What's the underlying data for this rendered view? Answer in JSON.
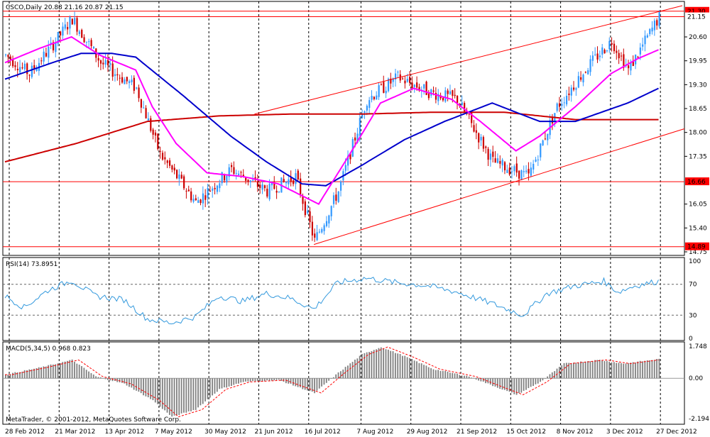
{
  "header": {
    "symbol_label": "CSCO,Daily",
    "ohlc": "20.88 21.16 20.87 21.15"
  },
  "rsi": {
    "label": "RSI(14) 73.8951",
    "levels": [
      30,
      70
    ],
    "ticks": [
      "100",
      "70",
      "30",
      "0"
    ]
  },
  "macd": {
    "label": "MACD(5,34,5) 0.968 0.823",
    "ticks": [
      "1.748",
      "0.00",
      "-2.194"
    ]
  },
  "footer": {
    "copyright": "MetaTrader, © 2001-2012, MetaQuotes Software Corp."
  },
  "colors": {
    "ema_fast": "#ff00ff",
    "sma_mid": "#0000cc",
    "sma_slow": "#cc0000",
    "bull": "#3399ff",
    "bear": "#cc0000",
    "rsi_line": "#3399dd",
    "macd_hist": "#808080",
    "macd_signal": "#ff0000",
    "channel": "#ff0000"
  },
  "chart_data": {
    "type": "line",
    "price_axis_ticks": [
      "20.60",
      "19.95",
      "19.30",
      "18.65",
      "18.00",
      "17.35",
      "16.05",
      "15.40",
      "14.75"
    ],
    "price_labels": [
      {
        "value": 21.3,
        "text": "21.30"
      },
      {
        "value": 21.15,
        "text": "21.15"
      },
      {
        "value": 16.66,
        "text": "16.66"
      },
      {
        "value": 14.89,
        "text": "14.89"
      }
    ],
    "ylim": [
      14.75,
      21.45
    ],
    "date_labels": [
      "28 Feb 2012",
      "21 Mar 2012",
      "13 Apr 2012",
      "7 May 2012",
      "30 May 2012",
      "21 Jun 2012",
      "16 Jul 2012",
      "7 Aug 2012",
      "29 Aug 2012",
      "21 Sep 2012",
      "15 Oct 2012",
      "8 Nov 2012",
      "3 Dec 2012",
      "27 Dec 2012"
    ],
    "price_key_points": [
      [
        0,
        20.1
      ],
      [
        10,
        19.6
      ],
      [
        20,
        20.4
      ],
      [
        28,
        21.1
      ],
      [
        40,
        19.9
      ],
      [
        55,
        19.2
      ],
      [
        65,
        17.4
      ],
      [
        80,
        16.1
      ],
      [
        95,
        17.0
      ],
      [
        110,
        16.4
      ],
      [
        122,
        16.8
      ],
      [
        130,
        15.05
      ],
      [
        140,
        16.4
      ],
      [
        152,
        18.9
      ],
      [
        165,
        19.5
      ],
      [
        178,
        19.1
      ],
      [
        190,
        18.9
      ],
      [
        205,
        17.2
      ],
      [
        220,
        16.8
      ],
      [
        232,
        18.7
      ],
      [
        245,
        19.8
      ],
      [
        255,
        20.5
      ],
      [
        262,
        19.7
      ],
      [
        275,
        21.15
      ]
    ],
    "ema_fast": [
      [
        0,
        19.9
      ],
      [
        15,
        20.3
      ],
      [
        28,
        20.6
      ],
      [
        40,
        20.1
      ],
      [
        55,
        19.7
      ],
      [
        62,
        18.7
      ],
      [
        72,
        17.7
      ],
      [
        85,
        16.9
      ],
      [
        100,
        16.8
      ],
      [
        115,
        16.6
      ],
      [
        132,
        16.05
      ],
      [
        145,
        17.4
      ],
      [
        158,
        18.8
      ],
      [
        172,
        19.2
      ],
      [
        188,
        18.9
      ],
      [
        200,
        18.3
      ],
      [
        215,
        17.5
      ],
      [
        225,
        17.9
      ],
      [
        240,
        18.7
      ],
      [
        255,
        19.6
      ],
      [
        266,
        20.0
      ],
      [
        275,
        20.25
      ]
    ],
    "sma_mid": [
      [
        0,
        19.45
      ],
      [
        20,
        19.9
      ],
      [
        32,
        20.15
      ],
      [
        45,
        20.15
      ],
      [
        55,
        20.05
      ],
      [
        75,
        19.0
      ],
      [
        95,
        17.9
      ],
      [
        110,
        17.2
      ],
      [
        125,
        16.6
      ],
      [
        135,
        16.55
      ],
      [
        150,
        17.1
      ],
      [
        168,
        17.8
      ],
      [
        185,
        18.3
      ],
      [
        205,
        18.8
      ],
      [
        225,
        18.3
      ],
      [
        240,
        18.3
      ],
      [
        262,
        18.8
      ],
      [
        275,
        19.2
      ]
    ],
    "sma_slow": [
      [
        0,
        17.2
      ],
      [
        30,
        17.7
      ],
      [
        60,
        18.3
      ],
      [
        90,
        18.45
      ],
      [
        120,
        18.5
      ],
      [
        150,
        18.5
      ],
      [
        180,
        18.55
      ],
      [
        210,
        18.55
      ],
      [
        240,
        18.35
      ],
      [
        275,
        18.35
      ]
    ],
    "horizontal_levels": [
      21.3,
      21.15,
      16.66,
      14.89
    ],
    "channel": {
      "upper": [
        [
          105,
          18.5
        ],
        [
          285,
          21.45
        ]
      ],
      "lower": [
        [
          130,
          14.95
        ],
        [
          310,
          18.1
        ]
      ]
    },
    "rsi_points": [
      [
        0,
        55
      ],
      [
        8,
        40
      ],
      [
        18,
        62
      ],
      [
        28,
        75
      ],
      [
        38,
        55
      ],
      [
        50,
        50
      ],
      [
        60,
        25
      ],
      [
        70,
        20
      ],
      [
        80,
        28
      ],
      [
        90,
        55
      ],
      [
        100,
        48
      ],
      [
        110,
        58
      ],
      [
        120,
        52
      ],
      [
        130,
        38
      ],
      [
        140,
        72
      ],
      [
        152,
        78
      ],
      [
        165,
        72
      ],
      [
        178,
        68
      ],
      [
        190,
        60
      ],
      [
        205,
        45
      ],
      [
        218,
        30
      ],
      [
        228,
        58
      ],
      [
        240,
        68
      ],
      [
        252,
        74
      ],
      [
        258,
        60
      ],
      [
        265,
        68
      ],
      [
        275,
        73.9
      ]
    ],
    "macd_hist_key": [
      [
        0,
        0.2
      ],
      [
        15,
        0.6
      ],
      [
        28,
        1.0
      ],
      [
        38,
        0.1
      ],
      [
        50,
        -0.3
      ],
      [
        62,
        -1.2
      ],
      [
        70,
        -2.1
      ],
      [
        80,
        -1.7
      ],
      [
        90,
        -0.6
      ],
      [
        100,
        -0.2
      ],
      [
        115,
        -0.1
      ],
      [
        130,
        -0.8
      ],
      [
        140,
        0.3
      ],
      [
        150,
        1.3
      ],
      [
        158,
        1.7
      ],
      [
        168,
        1.2
      ],
      [
        180,
        0.5
      ],
      [
        195,
        0.1
      ],
      [
        205,
        -0.4
      ],
      [
        215,
        -0.9
      ],
      [
        225,
        -0.2
      ],
      [
        235,
        0.8
      ],
      [
        250,
        1.0
      ],
      [
        260,
        0.8
      ],
      [
        275,
        1.05
      ]
    ]
  }
}
